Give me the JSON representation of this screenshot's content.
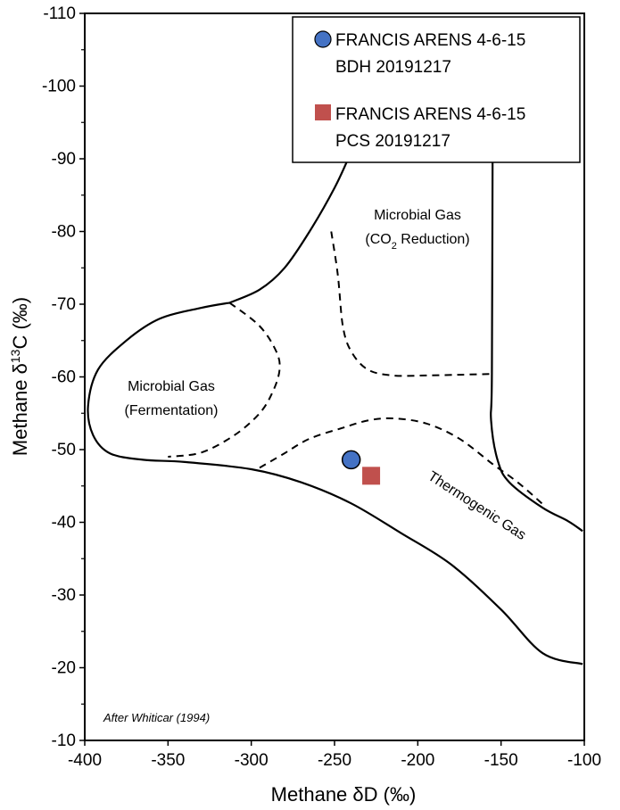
{
  "chart_data": {
    "type": "scatter",
    "xlabel_prefix": "Methane ",
    "xlabel_symbol": "δD",
    "xlabel_unit": " (‰)",
    "ylabel_prefix": "Methane ",
    "ylabel_symbol": "δ",
    "ylabel_sup": "13",
    "ylabel_element": "C",
    "ylabel_unit": " (‰)",
    "xlim": [
      -400,
      -100
    ],
    "ylim": [
      -10,
      -110
    ],
    "x_ticks": [
      -400,
      -350,
      -300,
      -250,
      -200,
      -150,
      -100
    ],
    "y_ticks": [
      -10,
      -20,
      -30,
      -40,
      -50,
      -60,
      -70,
      -80,
      -90,
      -100,
      -110
    ],
    "legend_position": "top-right",
    "series": [
      {
        "name_line1": "FRANCIS ARENS 4-6-15",
        "name_line2": "BDH 20191217",
        "marker": "circle",
        "color": "#4472C4",
        "points": [
          {
            "x": -240,
            "y": -48.6
          }
        ]
      },
      {
        "name_line1": "FRANCIS ARENS 4-6-15",
        "name_line2": "PCS 20191217",
        "marker": "square",
        "color": "#C0504D",
        "points": [
          {
            "x": -228,
            "y": -46.4
          }
        ]
      }
    ],
    "regions": [
      {
        "line1": "Microbial Gas",
        "line2": "(Fermentation)"
      },
      {
        "line1": "Microbial Gas",
        "line2_pre": "(CO",
        "line2_sub": "2",
        "line2_post": " Reduction)"
      },
      {
        "line1": "Thermogenic Gas"
      }
    ],
    "boundaries": {
      "solid_lobe": [
        [
          -313,
          -70.2
        ],
        [
          -330,
          -69.5
        ],
        [
          -355,
          -68
        ],
        [
          -375,
          -65
        ],
        [
          -392,
          -61
        ],
        [
          -398,
          -56
        ],
        [
          -395,
          -52
        ],
        [
          -385,
          -49.5
        ],
        [
          -365,
          -48.6
        ],
        [
          -340,
          -48.3
        ],
        [
          -300,
          -47.3
        ],
        [
          -270,
          -45.5
        ],
        [
          -240,
          -42.6
        ],
        [
          -210,
          -38.5
        ],
        [
          -180,
          -34.2
        ],
        [
          -150,
          -28
        ],
        [
          -125,
          -22
        ],
        [
          -101,
          -20.5
        ]
      ],
      "solid_upper": [
        [
          -313,
          -70.2
        ],
        [
          -295,
          -72
        ],
        [
          -280,
          -75
        ],
        [
          -265,
          -80
        ],
        [
          -250,
          -86
        ],
        [
          -240,
          -91
        ],
        [
          -230,
          -97
        ],
        [
          -222,
          -101
        ]
      ],
      "solid_right": [
        [
          -155,
          -96
        ],
        [
          -155.5,
          -60.5
        ],
        [
          -156,
          -54
        ],
        [
          -152,
          -48.5
        ],
        [
          -145,
          -45.5
        ],
        [
          -125,
          -42
        ],
        [
          -110,
          -40.2
        ],
        [
          -101,
          -38.8
        ]
      ],
      "dash_ferm": [
        [
          -313,
          -70.2
        ],
        [
          -295,
          -67
        ],
        [
          -285,
          -63.5
        ],
        [
          -283,
          -61
        ],
        [
          -287,
          -58
        ],
        [
          -295,
          -55
        ],
        [
          -310,
          -52
        ],
        [
          -330,
          -49.6
        ],
        [
          -350,
          -49
        ]
      ],
      "dash_co2": [
        [
          -252,
          -80
        ],
        [
          -248,
          -74
        ],
        [
          -245,
          -67
        ],
        [
          -240,
          -63.5
        ],
        [
          -230,
          -61
        ],
        [
          -215,
          -60.2
        ],
        [
          -195,
          -60.2
        ],
        [
          -175,
          -60.3
        ],
        [
          -157,
          -60.4
        ]
      ],
      "dash_thermo": [
        [
          -295,
          -47.5
        ],
        [
          -280,
          -49.5
        ],
        [
          -265,
          -51.5
        ],
        [
          -245,
          -53
        ],
        [
          -230,
          -54
        ],
        [
          -215,
          -54.3
        ],
        [
          -195,
          -53.6
        ],
        [
          -175,
          -51.5
        ],
        [
          -155,
          -48
        ],
        [
          -140,
          -45.5
        ],
        [
          -125,
          -42.5
        ]
      ]
    },
    "credit": "After Whiticar (1994)"
  }
}
